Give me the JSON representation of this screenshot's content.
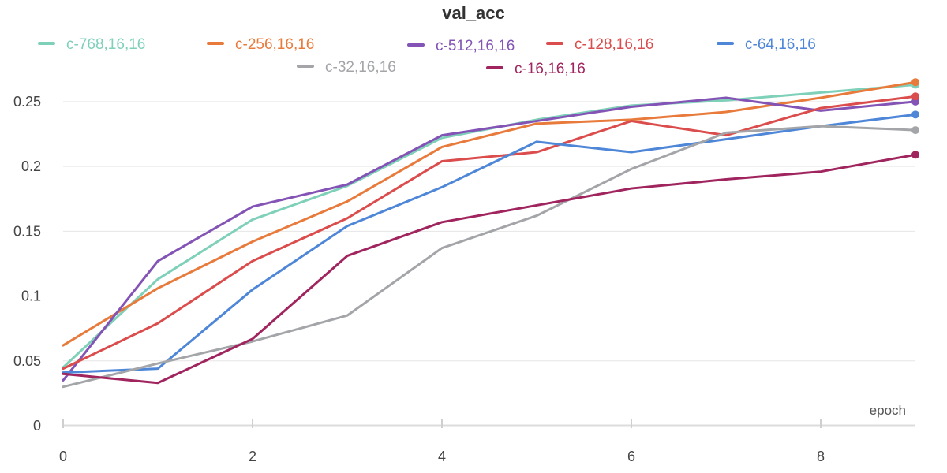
{
  "chart_data": {
    "type": "line",
    "title": "val_acc",
    "xlabel": "epoch",
    "ylabel": "",
    "x": [
      0,
      1,
      2,
      3,
      4,
      5,
      6,
      7,
      8,
      9
    ],
    "xlim": [
      0,
      9
    ],
    "ylim": [
      0,
      0.27
    ],
    "x_ticks": [
      "0",
      "2",
      "4",
      "6",
      "8"
    ],
    "y_ticks": [
      "0",
      "0.05",
      "0.1",
      "0.15",
      "0.2",
      "0.25"
    ],
    "grid": "horizontal",
    "legend_position": "top",
    "series": [
      {
        "name": "c-768,16,16",
        "color": "#7fd0b9",
        "values": [
          0.045,
          0.113,
          0.159,
          0.185,
          0.222,
          0.236,
          0.247,
          0.251,
          0.257,
          0.263
        ]
      },
      {
        "name": "c-256,16,16",
        "color": "#e87b3c",
        "values": [
          0.062,
          0.106,
          0.142,
          0.173,
          0.215,
          0.233,
          0.236,
          0.242,
          0.253,
          0.265
        ]
      },
      {
        "name": "c-512,16,16",
        "color": "#8353b5",
        "values": [
          0.035,
          0.127,
          0.169,
          0.186,
          0.224,
          0.235,
          0.246,
          0.253,
          0.243,
          0.25
        ]
      },
      {
        "name": "c-128,16,16",
        "color": "#db4c4c",
        "values": [
          0.044,
          0.079,
          0.127,
          0.16,
          0.204,
          0.211,
          0.235,
          0.224,
          0.245,
          0.254
        ]
      },
      {
        "name": "c-64,16,16",
        "color": "#4e86d8",
        "values": [
          0.041,
          0.044,
          0.105,
          0.154,
          0.184,
          0.219,
          0.211,
          0.221,
          0.231,
          0.24
        ]
      },
      {
        "name": "c-32,16,16",
        "color": "#a3a5a8",
        "values": [
          0.03,
          0.048,
          0.065,
          0.085,
          0.137,
          0.162,
          0.198,
          0.226,
          0.231,
          0.228
        ]
      },
      {
        "name": "c-16,16,16",
        "color": "#a0245e",
        "values": [
          0.04,
          0.033,
          0.067,
          0.131,
          0.157,
          0.17,
          0.183,
          0.19,
          0.196,
          0.209
        ]
      }
    ]
  }
}
